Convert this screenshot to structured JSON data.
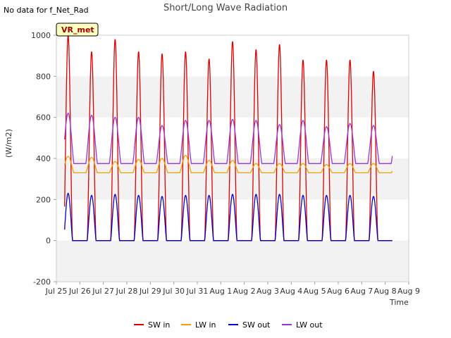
{
  "header": {
    "nodata_text": "No data for f_Net_Rad",
    "title": "Short/Long Wave Radiation",
    "badge": "VR_met"
  },
  "colors": {
    "SW in": "#dd0000",
    "LW in": "#f0a000",
    "SW out": "#0000cc",
    "LW out": "#9933dd",
    "band": "#f2f2f2",
    "badge_bg": "#ffffc0",
    "badge_text": "#990000"
  },
  "chart_data": {
    "type": "line",
    "title": "Short/Long Wave Radiation",
    "xlabel": "Time",
    "ylabel": "(W/m2)",
    "ylim": [
      -200,
      1000
    ],
    "yticks": [
      -200,
      0,
      200,
      400,
      600,
      800,
      1000
    ],
    "xlim_days": [
      0,
      15
    ],
    "xtick_labels": [
      "Jul 25",
      "Jul 26",
      "Jul 27",
      "Jul 28",
      "Jul 29",
      "Jul 30",
      "Jul 31",
      "Aug 1",
      "Aug 2",
      "Aug 3",
      "Aug 4",
      "Aug 5",
      "Aug 6",
      "Aug 7",
      "Aug 8",
      "Aug 9"
    ],
    "grid": "horizontal bands",
    "legend_position": "bottom",
    "series": [
      {
        "name": "SW in",
        "night": 0,
        "daily_peaks": [
          1000,
          920,
          980,
          920,
          910,
          920,
          885,
          970,
          930,
          955,
          880,
          880,
          880,
          825
        ]
      },
      {
        "name": "LW in",
        "night": 330,
        "daily_peaks": [
          410,
          405,
          385,
          395,
          400,
          415,
          390,
          390,
          375,
          375,
          375,
          370,
          375,
          375
        ]
      },
      {
        "name": "SW out",
        "night": 0,
        "daily_peaks": [
          230,
          220,
          225,
          220,
          215,
          220,
          220,
          225,
          225,
          225,
          220,
          220,
          220,
          215
        ]
      },
      {
        "name": "LW out",
        "night": 385,
        "daily_peaks": [
          620,
          610,
          600,
          600,
          560,
          585,
          585,
          590,
          585,
          565,
          585,
          555,
          570,
          560
        ]
      }
    ]
  }
}
